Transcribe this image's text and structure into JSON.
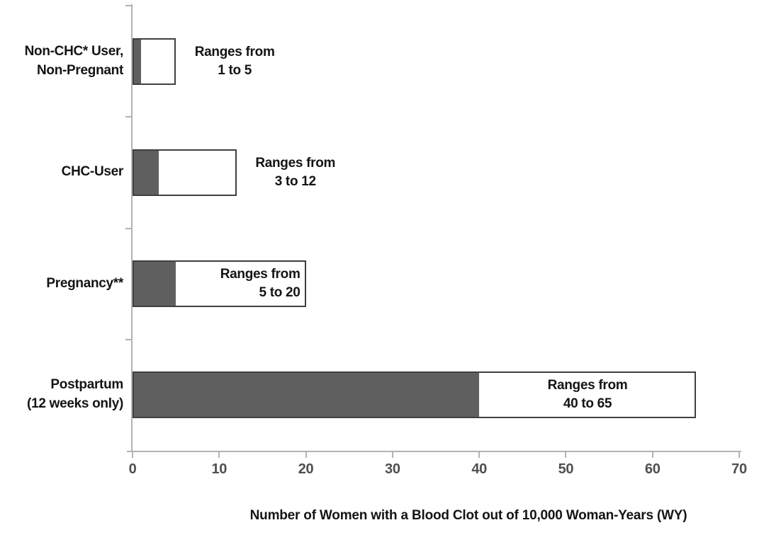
{
  "chart_data": {
    "type": "bar",
    "orientation": "horizontal",
    "title": "",
    "xlabel": "Number of Women with a Blood Clot out of 10,000 Woman-Years (WY)",
    "ylabel": "",
    "xlim": [
      0,
      70
    ],
    "x_ticks": [
      0,
      10,
      20,
      30,
      40,
      50,
      60,
      70
    ],
    "grid": false,
    "legend": false,
    "colors": {
      "low_segment_fill": "#5f5f5f",
      "range_segment_fill": "#ffffff",
      "bar_border": "#3f3f3f",
      "axis": "#b3b3b3",
      "tick_label": "#4f4f4f",
      "text": "#141414"
    },
    "rows": [
      {
        "category_lines": [
          "Non-CHC* User,",
          "Non-Pregnant"
        ],
        "low": 1,
        "high": 5,
        "annotation_lines": [
          "Ranges from",
          "1 to 5"
        ]
      },
      {
        "category_lines": [
          "CHC-User"
        ],
        "low": 3,
        "high": 12,
        "annotation_lines": [
          "Ranges from",
          "3 to 12"
        ]
      },
      {
        "category_lines": [
          "Pregnancy**"
        ],
        "low": 5,
        "high": 20,
        "annotation_lines": [
          "Ranges from",
          "5 to 20"
        ]
      },
      {
        "category_lines": [
          "Postpartum",
          "(12 weeks only)"
        ],
        "low": 40,
        "high": 65,
        "annotation_lines": [
          "Ranges from",
          "40 to 65"
        ]
      }
    ]
  }
}
